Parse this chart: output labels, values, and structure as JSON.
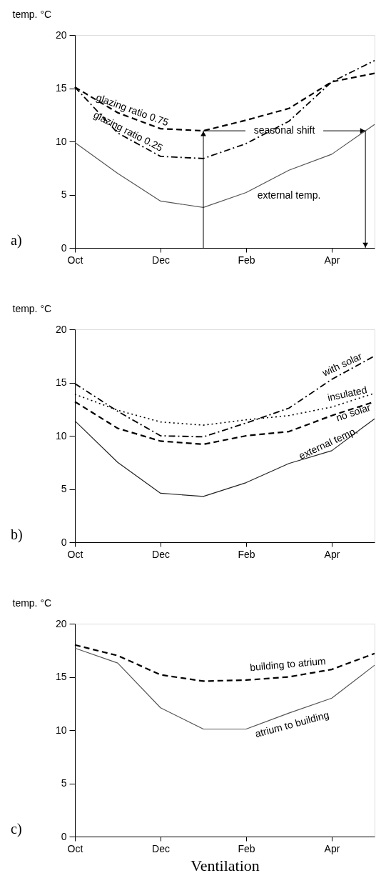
{
  "chart_data": [
    {
      "type": "line",
      "ylabel": "temp. °C",
      "categories": [
        "Oct",
        null,
        "Dec",
        null,
        "Feb",
        null,
        "Apr",
        null
      ],
      "ylim": [
        0,
        20
      ],
      "yticks": [
        0,
        5,
        10,
        15,
        20
      ],
      "grid": false,
      "legend": false,
      "marker": "none",
      "series": [
        {
          "name": "glazing ratio 0.75",
          "color": "#000000",
          "line_style": "dashed",
          "values": [
            15.1,
            12.7,
            11.2,
            11.0,
            12.0,
            13.1,
            15.6,
            16.4
          ]
        },
        {
          "name": "glazing ratio 0.25",
          "color": "#000000",
          "line_style": "dashdot",
          "values": [
            15.1,
            10.8,
            8.6,
            8.4,
            9.8,
            11.9,
            15.6,
            17.6
          ]
        },
        {
          "name": "external temp.",
          "color": "#555555",
          "line_style": "solid",
          "values": [
            9.9,
            7.0,
            4.4,
            3.8,
            5.2,
            7.3,
            8.8,
            11.6
          ]
        }
      ],
      "ref_lines": [
        {
          "axis": "y",
          "value": 11,
          "label": "seasonal shift",
          "color": "#000000"
        }
      ],
      "annotations": [
        "a)"
      ]
    },
    {
      "type": "line",
      "ylabel": "temp. °C",
      "categories": [
        "Oct",
        null,
        "Dec",
        null,
        "Feb",
        null,
        "Apr",
        null
      ],
      "ylim": [
        0,
        20
      ],
      "yticks": [
        0,
        5,
        10,
        15,
        20
      ],
      "grid": false,
      "legend": false,
      "marker": "none",
      "series": [
        {
          "name": "with solar",
          "color": "#000000",
          "line_style": "dashdot",
          "values": [
            14.9,
            12.3,
            10.0,
            9.9,
            11.2,
            12.6,
            15.3,
            17.5
          ]
        },
        {
          "name": "insulated",
          "color": "#000000",
          "line_style": "dotted",
          "values": [
            13.9,
            12.4,
            11.3,
            11.0,
            11.5,
            11.9,
            12.7,
            14.0
          ]
        },
        {
          "name": "no solar",
          "color": "#000000",
          "line_style": "dashed",
          "values": [
            13.2,
            10.7,
            9.5,
            9.2,
            10.0,
            10.4,
            11.9,
            13.2
          ]
        },
        {
          "name": "external temp.",
          "color": "#222222",
          "line_style": "solid",
          "values": [
            11.4,
            7.5,
            4.6,
            4.3,
            5.6,
            7.4,
            8.6,
            11.6
          ]
        }
      ],
      "annotations": [
        "b)"
      ]
    },
    {
      "type": "line",
      "ylabel": "temp. °C",
      "xlabel": "Ventilation",
      "categories": [
        "Oct",
        null,
        "Dec",
        null,
        "Feb",
        null,
        "Apr",
        null
      ],
      "ylim": [
        0,
        20
      ],
      "yticks": [
        0,
        5,
        10,
        15,
        20
      ],
      "grid": false,
      "legend": false,
      "marker": "none",
      "series": [
        {
          "name": "building to atrium",
          "color": "#000000",
          "line_style": "dashed",
          "values": [
            18.0,
            17.0,
            15.2,
            14.6,
            14.7,
            15.0,
            15.7,
            17.2
          ]
        },
        {
          "name": "atrium to building",
          "color": "#555555",
          "line_style": "solid",
          "values": [
            17.7,
            16.3,
            12.1,
            10.1,
            10.1,
            11.6,
            13.0,
            16.1
          ]
        }
      ],
      "annotations": [
        "c)"
      ]
    }
  ]
}
